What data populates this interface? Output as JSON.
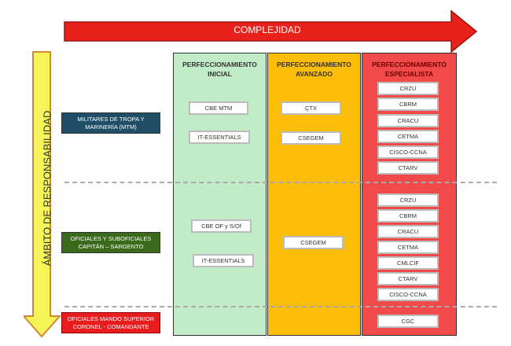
{
  "top_arrow": {
    "label": "COMPLEJIDAD",
    "color": "#e8221b"
  },
  "side_arrow": {
    "label": "ÁMBITO DE RESPONSABILIDAD",
    "color": "#f5f55a"
  },
  "rows": [
    {
      "label": "MILITARES DE TROPA Y MARINERÍA (MTM)",
      "color": "#1f4e66"
    },
    {
      "label": "OFICIALES Y SUBOFICIALES CAPITÁN – SARGENTO",
      "color": "#3b6a1c"
    },
    {
      "label": "OFICIALES MANDO SUPERIOR CORONEL - COMANDANTE",
      "color": "#e81c1c"
    }
  ],
  "columns": [
    {
      "title": "PERFECCIONAMIENTO INICIAL",
      "color": "#c2ecc8",
      "title_color": "#333333",
      "mtm": [
        "CBE MTM",
        "IT-ESSENTIALS"
      ],
      "oficiales": [
        "CBE OF y S/Of",
        "IT-ESSENTIALS"
      ],
      "superior": []
    },
    {
      "title": "PERFECCIONAMIENTO AVANZADO",
      "color": "#fbbd08",
      "title_color": "#333333",
      "mtm": [
        "ÇTX",
        "CSEGEM"
      ],
      "oficiales": [
        "CSEGEM"
      ],
      "superior": []
    },
    {
      "title": "PERFECCIONAMIENTO ESPECIALISTA",
      "color": "#f24a4a",
      "title_color": "#7a0000",
      "mtm": [
        "CRZU",
        "CBRM",
        "CRACU",
        "CETMA",
        "CISCO-CCNA",
        "CTARV"
      ],
      "oficiales": [
        "CRZU",
        "CBRM",
        "CRACU",
        "CETMA",
        "CMLCIF",
        "CTARV",
        "CISCO-CCNA"
      ],
      "superior": [
        "CGC"
      ]
    }
  ]
}
